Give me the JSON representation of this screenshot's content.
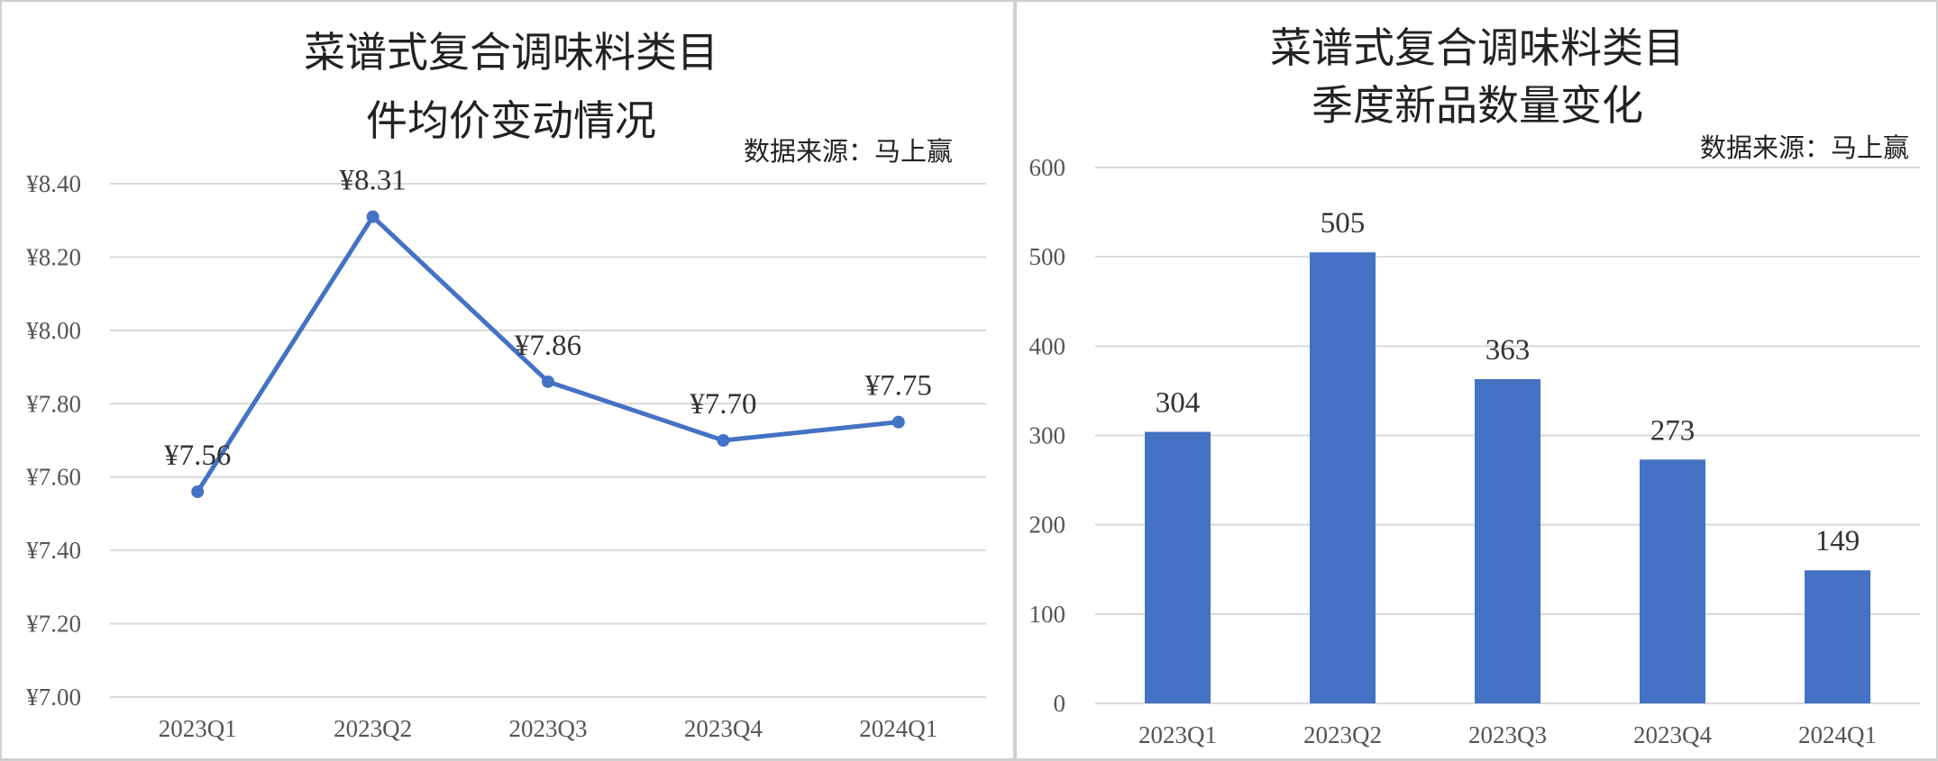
{
  "chart_data": [
    {
      "type": "line",
      "title_lines": [
        "菜谱式复合调味料类目",
        "件均价变动情况"
      ],
      "source": "数据来源：马上赢",
      "categories": [
        "2023Q1",
        "2023Q2",
        "2023Q3",
        "2023Q4",
        "2024Q1"
      ],
      "series": [
        {
          "values": [
            7.56,
            8.31,
            7.86,
            7.7,
            7.75
          ]
        }
      ],
      "data_labels": [
        "¥7.56",
        "¥8.31",
        "¥7.86",
        "¥7.70",
        "¥7.75"
      ],
      "yticks": [
        7.0,
        7.2,
        7.4,
        7.6,
        7.8,
        8.0,
        8.2,
        8.4
      ],
      "ytick_labels": [
        "¥7.00",
        "¥7.20",
        "¥7.40",
        "¥7.60",
        "¥7.80",
        "¥8.00",
        "¥8.20",
        "¥8.40"
      ],
      "ylim": [
        7.0,
        8.4
      ],
      "grid": true,
      "color": "#4472c4"
    },
    {
      "type": "bar",
      "title_lines": [
        "菜谱式复合调味料类目",
        "季度新品数量变化"
      ],
      "source": "数据来源：马上赢",
      "categories": [
        "2023Q1",
        "2023Q2",
        "2023Q3",
        "2023Q4",
        "2024Q1"
      ],
      "series": [
        {
          "values": [
            304,
            505,
            363,
            273,
            149
          ]
        }
      ],
      "data_labels": [
        "304",
        "505",
        "363",
        "273",
        "149"
      ],
      "yticks": [
        0,
        100,
        200,
        300,
        400,
        500,
        600
      ],
      "ytick_labels": [
        "0",
        "100",
        "200",
        "300",
        "400",
        "500",
        "600"
      ],
      "ylim": [
        0,
        600
      ],
      "grid": true,
      "color": "#4472c4"
    }
  ]
}
